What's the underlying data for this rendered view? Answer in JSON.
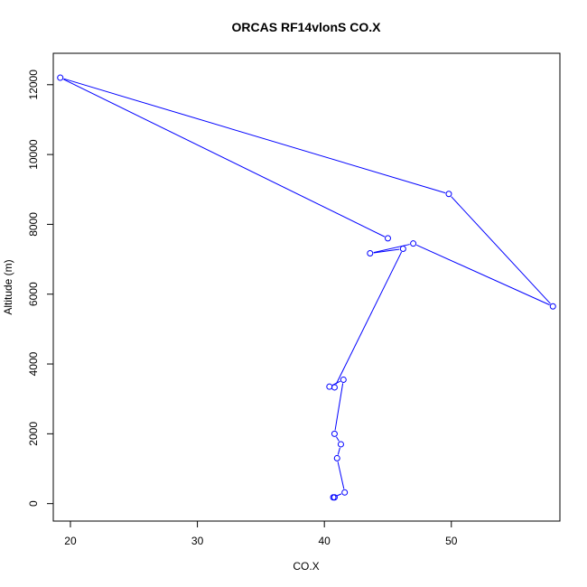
{
  "chart_data": {
    "type": "line",
    "title": "ORCAS RF14vlonS CO.X",
    "xlabel": "CO.X",
    "ylabel": "Altitude (m)",
    "xlim": [
      18.65,
      58.55
    ],
    "ylim": [
      -500,
      12900
    ],
    "x_ticks": [
      20,
      30,
      40,
      50
    ],
    "y_ticks": [
      0,
      2000,
      4000,
      6000,
      8000,
      10000,
      12000
    ],
    "grid": false,
    "legend": "none",
    "colors": {
      "series": "#0000ff",
      "axis": "#000000"
    },
    "series": [
      {
        "marker": "open-circle",
        "points": [
          {
            "x": 45.0,
            "y": 7600
          },
          {
            "x": 19.2,
            "y": 12200
          },
          {
            "x": 49.8,
            "y": 8870
          },
          {
            "x": 58.0,
            "y": 5650
          },
          {
            "x": 47.0,
            "y": 7450
          },
          {
            "x": 43.6,
            "y": 7170
          },
          {
            "x": 46.2,
            "y": 7300
          },
          {
            "x": 40.8,
            "y": 3330
          },
          {
            "x": 40.4,
            "y": 3350
          },
          {
            "x": 41.5,
            "y": 3550
          },
          {
            "x": 40.8,
            "y": 2000
          },
          {
            "x": 41.3,
            "y": 1700
          },
          {
            "x": 41.0,
            "y": 1300
          },
          {
            "x": 41.6,
            "y": 320
          },
          {
            "x": 40.7,
            "y": 180
          },
          {
            "x": 40.8,
            "y": 180
          }
        ]
      }
    ]
  }
}
